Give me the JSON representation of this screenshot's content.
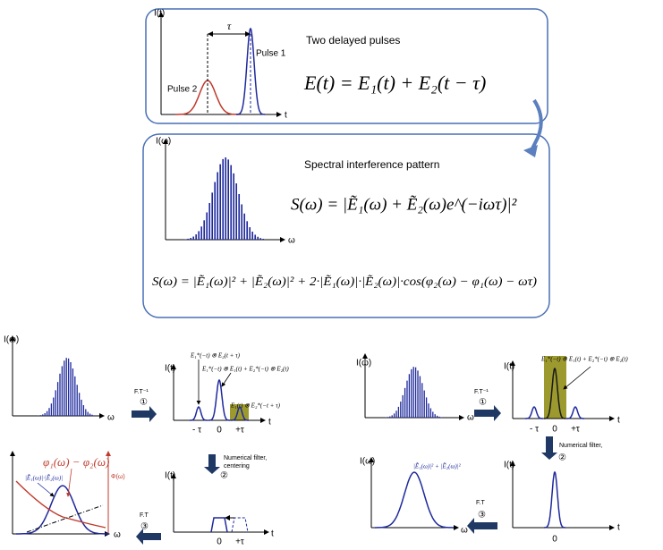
{
  "top_box": {
    "y_axis": "I(t)",
    "x_axis": "t",
    "delay": "τ",
    "pulse_1": "Pulse 1",
    "pulse_2": "Pulse 2",
    "heading": "Two delayed pulses",
    "formula": "E(t) = E₁(t) + E₂(t − τ)"
  },
  "spectrum_box": {
    "y_axis": "I(ω)",
    "x_axis": "ω",
    "heading": "Spectral interference pattern",
    "formula": "S(ω)  =  |Ẽ₁(ω) + Ẽ₂(ω)e^(−iωτ)|²",
    "expansion": "S(ω)  =  |Ẽ₁(ω)|² + |Ẽ₂(ω)|² + 2·|Ẽ₁(ω)|·|Ẽ₂(ω)|·cos(φ₂(ω) − φ₁(ω) − ωτ)"
  },
  "left_method": {
    "spectrum": {
      "y_axis": "I(ω)",
      "x_axis": "ω"
    },
    "step_1": {
      "label": "F.T⁻¹",
      "number": "①"
    },
    "time_signal": {
      "y_axis": "I(t)",
      "x_axis": "t",
      "cross_term_left": "E₁*(−t) ⊗ E₂(t + τ)",
      "dc_term": "E₁*(−t) ⊗ E₁(t) + E₂*(−t) ⊗ E₂(t)",
      "cross_term_right": "E₁(t) ⊗ E₂*(−t + τ)",
      "ticks": [
        "- τ",
        "0",
        "+τ"
      ]
    },
    "step_2": {
      "label": "Numerical filter,",
      "label_2": "centering",
      "number": "②"
    },
    "filtered": {
      "y_axis": "I(t)",
      "x_axis": "t",
      "ticks": [
        "0",
        "+τ"
      ]
    },
    "step_3": {
      "label": "F.T",
      "number": "③"
    },
    "result": {
      "phase": "φ₁(ω) − φ₂(ω)",
      "amplitude": "|Ẽ₁(ω)|·|Ẽ₂(ω)|",
      "phase_axis": "Φ(ω)",
      "x_axis": "ω"
    }
  },
  "right_method": {
    "spectrum": {
      "y_axis": "I(ω)",
      "x_axis": "ω"
    },
    "step_1": {
      "label": "F.T⁻¹",
      "number": "①"
    },
    "time_signal": {
      "y_axis": "I(t)",
      "x_axis": "t",
      "dc_term": "E₁*(−t) ⊗ E₁(t) + E₂*(−t) ⊗ E₂(t)",
      "ticks": [
        "- τ",
        "0",
        "+τ"
      ]
    },
    "step_2": {
      "label": "Numerical filter,",
      "number": "②"
    },
    "filtered": {
      "y_axis": "I(t)",
      "x_axis": "t",
      "ticks": [
        "0"
      ]
    },
    "step_3": {
      "label": "F.T",
      "number": "③"
    },
    "result": {
      "y_axis": "I(ω)",
      "curve": "|Ẽ₁(ω)|² + |Ẽ₂(ω)|²",
      "x_axis": "ω"
    }
  }
}
